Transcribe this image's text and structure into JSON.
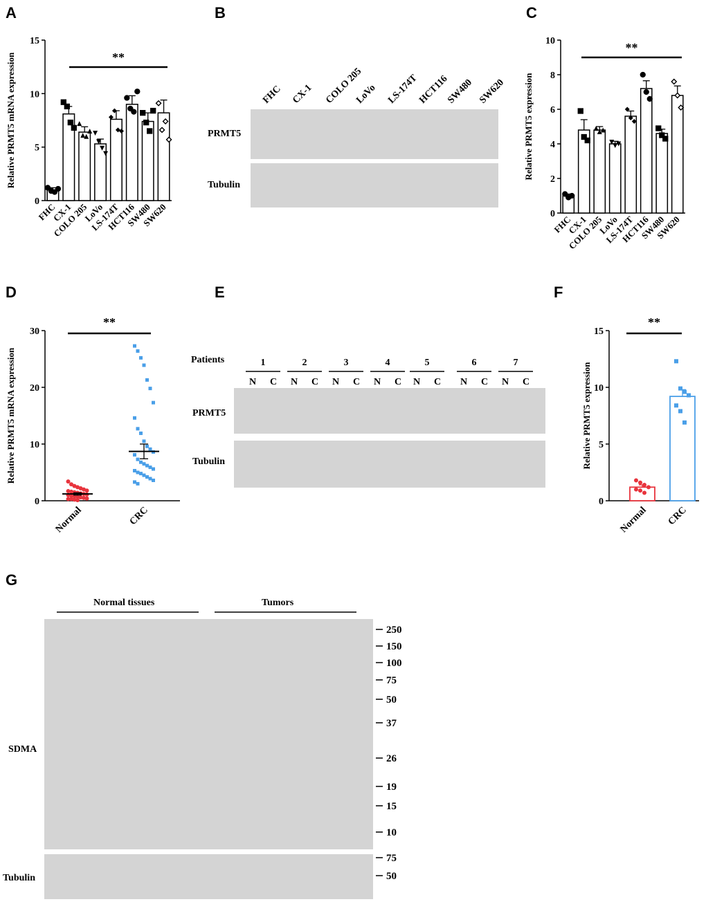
{
  "panels": {
    "A": "A",
    "B": "B",
    "C": "C",
    "D": "D",
    "E": "E",
    "F": "F",
    "G": "G"
  },
  "chart_data": [
    {
      "panel": "A",
      "type": "bar",
      "ylabel": "Relative PRMT5 mRNA expression",
      "ylim": [
        0,
        15
      ],
      "yticks": [
        0,
        5,
        10,
        15
      ],
      "categories": [
        "FHC",
        "CX-1",
        "COLO 205",
        "LoVo",
        "LS-174T",
        "HCT116",
        "SW480",
        "SW620"
      ],
      "values": [
        1.0,
        8.1,
        6.4,
        5.3,
        7.6,
        9.0,
        7.4,
        8.2
      ],
      "errors": [
        0.2,
        0.7,
        0.5,
        0.45,
        0.8,
        0.8,
        0.8,
        1.2
      ],
      "points": [
        [
          1.2,
          0.9,
          0.8,
          1.1
        ],
        [
          9.2,
          8.8,
          7.3,
          6.8
        ],
        [
          7.2,
          6.1,
          6.0,
          6.5
        ],
        [
          6.3,
          5.5,
          4.9,
          4.4
        ],
        [
          7.8,
          8.4,
          6.6,
          6.5
        ],
        [
          9.6,
          8.6,
          8.3,
          10.2
        ],
        [
          8.2,
          7.3,
          6.5,
          8.4
        ],
        [
          9.1,
          6.6,
          7.4,
          5.7
        ]
      ],
      "markers": [
        "circle",
        "square",
        "triangle",
        "triangle-down",
        "diamond",
        "circle",
        "square",
        "diamond-open"
      ],
      "annotation": "**"
    },
    {
      "panel": "C",
      "type": "bar",
      "ylabel": "Relative PRMT5 expression",
      "ylim": [
        0,
        10
      ],
      "yticks": [
        0,
        2,
        4,
        6,
        8,
        10
      ],
      "categories": [
        "FHC",
        "CX-1",
        "COLO 205",
        "LoVo",
        "LS-174T",
        "HCT116",
        "SW480",
        "SW620"
      ],
      "values": [
        1.0,
        4.8,
        4.8,
        4.0,
        5.6,
        7.2,
        4.6,
        6.8
      ],
      "errors": [
        0.1,
        0.6,
        0.2,
        0.15,
        0.3,
        0.45,
        0.25,
        0.55
      ],
      "points": [
        [
          1.1,
          0.9,
          1.0
        ],
        [
          5.9,
          4.4,
          4.2
        ],
        [
          4.9,
          4.7,
          4.8
        ],
        [
          4.1,
          3.9,
          4.0
        ],
        [
          6.0,
          5.5,
          5.3
        ],
        [
          8.0,
          7.0,
          6.6
        ],
        [
          4.9,
          4.5,
          4.3
        ],
        [
          7.6,
          6.8,
          6.1
        ]
      ],
      "markers": [
        "circle",
        "square",
        "triangle",
        "triangle-down",
        "diamond",
        "circle",
        "square",
        "diamond-open"
      ],
      "annotation": "**"
    },
    {
      "panel": "D",
      "type": "scatter",
      "ylabel": "Relative PRMT5 mRNA expression",
      "ylim": [
        0,
        30
      ],
      "yticks": [
        0,
        10,
        20,
        30
      ],
      "categories": [
        "Normal",
        "CRC"
      ],
      "means": [
        1.2,
        8.7
      ],
      "errors": [
        0.2,
        1.3
      ],
      "series": [
        {
          "color": "#e8343d",
          "values": [
            3.4,
            2.9,
            2.6,
            2.4,
            2.2,
            2.0,
            1.8,
            1.7,
            1.6,
            1.5,
            1.4,
            1.3,
            1.2,
            1.1,
            1.0,
            0.9,
            0.8,
            0.7,
            0.6,
            0.5,
            0.4,
            0.3,
            0.3,
            0.2,
            0.1
          ]
        },
        {
          "color": "#4a9fe8",
          "values": [
            27.3,
            26.4,
            25.2,
            23.9,
            21.3,
            19.8,
            17.3,
            14.6,
            12.7,
            11.9,
            10.5,
            9.6,
            9.1,
            8.6,
            8.1,
            7.3,
            6.8,
            6.5,
            6.2,
            5.9,
            5.6,
            5.3,
            5.0,
            4.8,
            4.5,
            4.2,
            3.9,
            3.6,
            3.3,
            3.0
          ]
        }
      ],
      "annotation": "**"
    },
    {
      "panel": "F",
      "type": "bar",
      "ylabel": "Relative PRMT5 expression",
      "ylim": [
        0,
        15
      ],
      "yticks": [
        0,
        5,
        10,
        15
      ],
      "categories": [
        "Normal",
        "CRC"
      ],
      "values": [
        1.2,
        9.2
      ],
      "errors": [
        0.2,
        0.6
      ],
      "colors": [
        "#e8343d",
        "#4a9fe8"
      ],
      "points": [
        [
          1.8,
          1.6,
          1.4,
          1.2,
          1.0,
          0.9,
          0.7
        ],
        [
          12.3,
          9.9,
          9.6,
          9.3,
          8.4,
          7.9,
          6.9
        ]
      ],
      "annotation": "**"
    }
  ],
  "blots": {
    "B": {
      "lanes": [
        "FHC",
        "CX-1",
        "COLO 205",
        "LoVo",
        "LS-174T",
        "HCT116",
        "SW480",
        "SW620"
      ],
      "rows": [
        "PRMT5",
        "Tubulin"
      ]
    },
    "E": {
      "header": "Patients",
      "patients": [
        "1",
        "2",
        "3",
        "4",
        "5",
        "6",
        "7"
      ],
      "lane_n": "N",
      "lane_c": "C",
      "rows": [
        "PRMT5",
        "Tubulin"
      ]
    },
    "G": {
      "group_normal": "Normal tissues",
      "group_tumor": "Tumors",
      "row_main": "SDMA",
      "row_loading": "Tubulin",
      "markers_main": [
        "250",
        "150",
        "100",
        "75",
        "50",
        "37",
        "26",
        "19",
        "15",
        "10"
      ],
      "markers_loading": [
        "75",
        "50"
      ]
    }
  }
}
